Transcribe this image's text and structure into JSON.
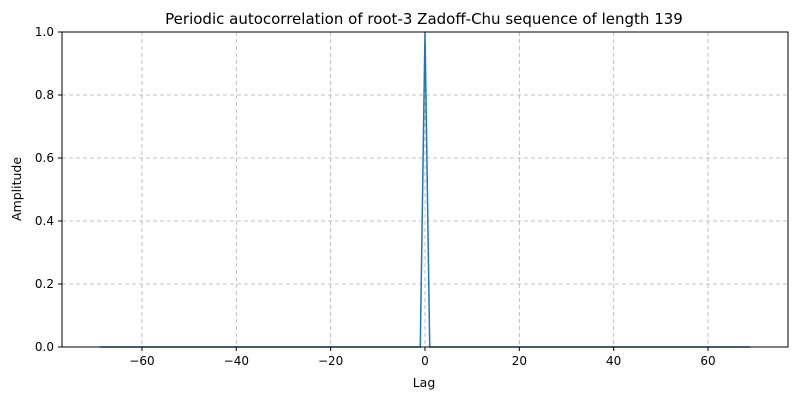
{
  "chart_data": {
    "type": "line",
    "title": "Periodic autocorrelation of root-3 Zadoff-Chu sequence of length 139",
    "xlabel": "Lag",
    "ylabel": "Amplitude",
    "xlim": [
      -76.95,
      76.95
    ],
    "ylim": [
      0,
      1
    ],
    "xticks": [
      -60,
      -40,
      -20,
      0,
      20,
      40,
      60
    ],
    "yticks": [
      0.0,
      0.2,
      0.4,
      0.6,
      0.8,
      1.0
    ],
    "xtick_labels": [
      "−60",
      "−40",
      "−20",
      "0",
      "20",
      "40",
      "60"
    ],
    "ytick_labels": [
      "0.0",
      "0.2",
      "0.4",
      "0.6",
      "0.8",
      "1.0"
    ],
    "grid": true,
    "grid_style": "dashed",
    "series": [
      {
        "color": "#1f77b4",
        "x_start": -69,
        "x_end": 69,
        "x_step": 1,
        "baseline_value": 0,
        "peaks": [
          {
            "x": 0,
            "y": 1.0
          }
        ]
      }
    ]
  }
}
